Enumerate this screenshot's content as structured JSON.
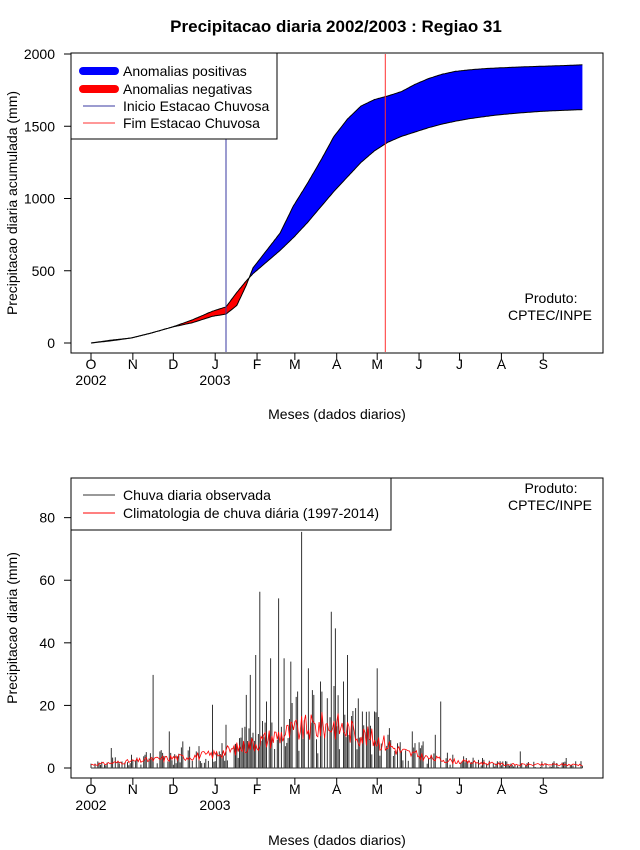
{
  "chart_data": [
    {
      "type": "area",
      "title": "Precipitacao diaria 2002/2003 : Regiao 31",
      "xlabel": "Meses (dados diarios)",
      "ylabel": "Precipitacao diaria acumulada (mm)",
      "ylim": [
        0,
        2000
      ],
      "y_ticks": [
        0,
        500,
        1000,
        1500,
        2000
      ],
      "x_ticks": [
        "O",
        "N",
        "D",
        "J",
        "F",
        "M",
        "A",
        "M",
        "J",
        "J",
        "A",
        "S"
      ],
      "year_labels": [
        "2002",
        "2003"
      ],
      "product_label": [
        "Produto:",
        "CPTEC/INPE"
      ],
      "legend": [
        {
          "label": "Anomalias positivas",
          "color": "#0000ff",
          "kind": "thick"
        },
        {
          "label": "Anomalias negativas",
          "color": "#ff0000",
          "kind": "thick"
        },
        {
          "label": "Inicio Estacao Chuvosa",
          "color": "#3a3aa0",
          "kind": "thin"
        },
        {
          "label": "Fim Estacao Chuvosa",
          "color": "#ff3030",
          "kind": "thin"
        }
      ],
      "wet_season_start_day": 100,
      "wet_season_end_day": 218,
      "days": [
        0,
        15,
        30,
        45,
        60,
        75,
        90,
        100,
        108,
        115,
        120,
        130,
        140,
        150,
        160,
        170,
        180,
        190,
        200,
        210,
        220,
        230,
        240,
        250,
        260,
        270,
        280,
        290,
        300,
        310,
        320,
        330,
        340,
        350,
        364
      ],
      "observed_cumulative": [
        0,
        20,
        35,
        70,
        110,
        140,
        185,
        200,
        260,
        400,
        520,
        640,
        760,
        950,
        1100,
        1260,
        1430,
        1550,
        1640,
        1685,
        1710,
        1740,
        1790,
        1830,
        1860,
        1880,
        1890,
        1898,
        1903,
        1907,
        1911,
        1914,
        1917,
        1920,
        1925
      ],
      "climatology_cumulative": [
        0,
        15,
        35,
        70,
        110,
        160,
        220,
        250,
        350,
        430,
        480,
        560,
        640,
        730,
        830,
        940,
        1050,
        1150,
        1250,
        1330,
        1390,
        1430,
        1460,
        1490,
        1515,
        1535,
        1552,
        1565,
        1577,
        1586,
        1594,
        1601,
        1606,
        1610,
        1615
      ],
      "positive_color": "#0000ff",
      "negative_color": "#ff0000"
    },
    {
      "type": "bar",
      "title": "",
      "xlabel": "Meses (dados diarios)",
      "ylabel": "Precipitacao diaria (mm)",
      "ylim": [
        0,
        85
      ],
      "y_ticks": [
        0,
        20,
        40,
        60,
        80
      ],
      "x_ticks": [
        "O",
        "N",
        "D",
        "J",
        "F",
        "M",
        "A",
        "M",
        "J",
        "J",
        "A",
        "S"
      ],
      "year_labels": [
        "2002",
        "2003"
      ],
      "product_label": [
        "Produto:",
        "CPTEC/INPE"
      ],
      "legend": [
        {
          "label": "Chuva diaria observada",
          "color": "#333333",
          "kind": "thin"
        },
        {
          "label": "Climatologia de chuva diária (1997-2014)",
          "color": "#ff0000",
          "kind": "thin"
        }
      ],
      "peaks": [
        {
          "day": 5,
          "value": 2
        },
        {
          "day": 15,
          "value": 6
        },
        {
          "day": 30,
          "value": 4
        },
        {
          "day": 40,
          "value": 4
        },
        {
          "day": 46,
          "value": 28
        },
        {
          "day": 58,
          "value": 11
        },
        {
          "day": 68,
          "value": 8
        },
        {
          "day": 78,
          "value": 5
        },
        {
          "day": 90,
          "value": 19
        },
        {
          "day": 100,
          "value": 13
        },
        {
          "day": 110,
          "value": 9
        },
        {
          "day": 115,
          "value": 22
        },
        {
          "day": 118,
          "value": 28
        },
        {
          "day": 122,
          "value": 34
        },
        {
          "day": 125,
          "value": 53
        },
        {
          "day": 130,
          "value": 20
        },
        {
          "day": 133,
          "value": 33
        },
        {
          "day": 139,
          "value": 51
        },
        {
          "day": 143,
          "value": 33
        },
        {
          "day": 148,
          "value": 32
        },
        {
          "day": 153,
          "value": 23
        },
        {
          "day": 156,
          "value": 71
        },
        {
          "day": 161,
          "value": 30
        },
        {
          "day": 165,
          "value": 22
        },
        {
          "day": 170,
          "value": 26
        },
        {
          "day": 175,
          "value": 21
        },
        {
          "day": 178,
          "value": 47
        },
        {
          "day": 181,
          "value": 42
        },
        {
          "day": 187,
          "value": 26
        },
        {
          "day": 190,
          "value": 34
        },
        {
          "day": 196,
          "value": 18
        },
        {
          "day": 201,
          "value": 17
        },
        {
          "day": 206,
          "value": 17
        },
        {
          "day": 212,
          "value": 30
        },
        {
          "day": 220,
          "value": 10
        },
        {
          "day": 230,
          "value": 5
        },
        {
          "day": 238,
          "value": 11
        },
        {
          "day": 246,
          "value": 8
        },
        {
          "day": 255,
          "value": 10
        },
        {
          "day": 259,
          "value": 20
        },
        {
          "day": 268,
          "value": 4
        },
        {
          "day": 278,
          "value": 3
        },
        {
          "day": 290,
          "value": 3
        },
        {
          "day": 305,
          "value": 2
        },
        {
          "day": 318,
          "value": 5
        },
        {
          "day": 334,
          "value": 2
        },
        {
          "day": 352,
          "value": 3
        }
      ],
      "climatology_days": [
        0,
        30,
        60,
        90,
        110,
        125,
        140,
        160,
        180,
        200,
        215,
        230,
        250,
        270,
        290,
        310,
        330,
        364
      ],
      "climatology_values": [
        1,
        2,
        3,
        4,
        6,
        8,
        10,
        12,
        13,
        10,
        8,
        5,
        3,
        2,
        1.5,
        1,
        1,
        1
      ]
    }
  ]
}
